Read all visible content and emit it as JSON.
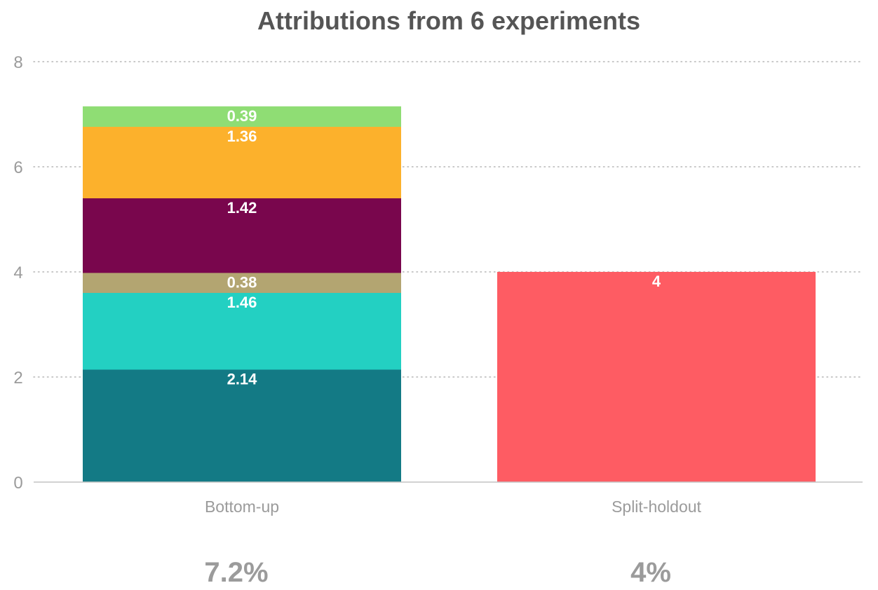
{
  "chart_data": {
    "type": "bar",
    "stacked": true,
    "title": "Attributions from 6 experiments",
    "xlabel": "",
    "ylabel": "",
    "ylim": [
      0,
      8
    ],
    "yticks": [
      0,
      2,
      4,
      6,
      8
    ],
    "ytick_labels": [
      "0",
      "2",
      "4",
      "6",
      "8"
    ],
    "grid": true,
    "grid_style": "dotted",
    "legend": "none",
    "categories": [
      "Bottom-up",
      "Split-holdout"
    ],
    "bars": [
      {
        "category": "Bottom-up",
        "segments": [
          {
            "value": 2.14,
            "label": "2.14",
            "color": "#137a85"
          },
          {
            "value": 1.46,
            "label": "1.46",
            "color": "#23d0c2"
          },
          {
            "value": 0.38,
            "label": "0.38",
            "color": "#b3a571"
          },
          {
            "value": 1.42,
            "label": "1.42",
            "color": "#79064d"
          },
          {
            "value": 1.36,
            "label": "1.36",
            "color": "#fcb12c"
          },
          {
            "value": 0.39,
            "label": "0.39",
            "color": "#8fdd74"
          }
        ],
        "summary": "7.2%"
      },
      {
        "category": "Split-holdout",
        "segments": [
          {
            "value": 4,
            "label": "4",
            "color": "#fe5c63"
          }
        ],
        "summary": "4%"
      }
    ],
    "colors": {
      "title": "#555555",
      "axis_text": "#9b9b9b",
      "gridline": "#b5b5b5",
      "baseline": "#c4c4c4",
      "segment_label": "#ffffff"
    }
  }
}
